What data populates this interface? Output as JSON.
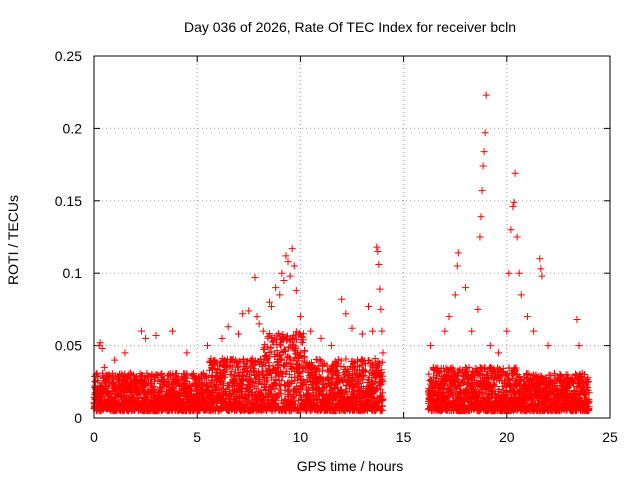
{
  "chart_data": {
    "type": "scatter",
    "title": "Day 036 of 2026, Rate Of TEC Index for receiver bcln",
    "xlabel": "GPS time / hours",
    "ylabel": "ROTI / TECUs",
    "xlim": [
      0,
      25
    ],
    "ylim": [
      0,
      0.25
    ],
    "x_ticks": [
      0,
      5,
      10,
      15,
      20,
      25
    ],
    "x_tick_labels": [
      "0",
      "5",
      "10",
      "15",
      "20",
      "25"
    ],
    "y_ticks": [
      0,
      0.05,
      0.1,
      0.15,
      0.2,
      0.25
    ],
    "y_tick_labels": [
      "0",
      "0.05",
      "0.1",
      "0.15",
      "0.2",
      "0.25"
    ],
    "grid": true,
    "marker": "+",
    "color": "#ff0000",
    "data_gap_hours": [
      14.0,
      16.2
    ],
    "series": [
      {
        "name": "ROTI",
        "points": [
          [
            0.1,
            0.03
          ],
          [
            0.25,
            0.05
          ],
          [
            0.3,
            0.052
          ],
          [
            0.4,
            0.048
          ],
          [
            0.5,
            0.035
          ],
          [
            1.0,
            0.04
          ],
          [
            1.5,
            0.045
          ],
          [
            2.3,
            0.06
          ],
          [
            2.5,
            0.055
          ],
          [
            3.0,
            0.057
          ],
          [
            3.8,
            0.06
          ],
          [
            4.5,
            0.045
          ],
          [
            5.5,
            0.05
          ],
          [
            6.2,
            0.055
          ],
          [
            6.5,
            0.063
          ],
          [
            7.0,
            0.058
          ],
          [
            7.2,
            0.072
          ],
          [
            7.5,
            0.074
          ],
          [
            7.8,
            0.097
          ],
          [
            7.9,
            0.07
          ],
          [
            8.0,
            0.065
          ],
          [
            8.2,
            0.06
          ],
          [
            8.5,
            0.08
          ],
          [
            8.6,
            0.077
          ],
          [
            8.8,
            0.09
          ],
          [
            9.0,
            0.085
          ],
          [
            9.1,
            0.1
          ],
          [
            9.2,
            0.095
          ],
          [
            9.3,
            0.112
          ],
          [
            9.4,
            0.108
          ],
          [
            9.5,
            0.098
          ],
          [
            9.6,
            0.117
          ],
          [
            9.7,
            0.105
          ],
          [
            9.8,
            0.088
          ],
          [
            10.0,
            0.07
          ],
          [
            10.5,
            0.06
          ],
          [
            11.0,
            0.055
          ],
          [
            11.5,
            0.05
          ],
          [
            12.0,
            0.082
          ],
          [
            12.2,
            0.072
          ],
          [
            12.5,
            0.062
          ],
          [
            13.0,
            0.058
          ],
          [
            13.3,
            0.077
          ],
          [
            13.5,
            0.06
          ],
          [
            13.7,
            0.118
          ],
          [
            13.75,
            0.115
          ],
          [
            13.8,
            0.106
          ],
          [
            13.85,
            0.089
          ],
          [
            13.9,
            0.075
          ],
          [
            13.95,
            0.06
          ],
          [
            14.0,
            0.045
          ],
          [
            16.3,
            0.05
          ],
          [
            17.0,
            0.06
          ],
          [
            17.2,
            0.07
          ],
          [
            17.5,
            0.085
          ],
          [
            17.6,
            0.105
          ],
          [
            17.65,
            0.114
          ],
          [
            18.0,
            0.09
          ],
          [
            18.3,
            0.06
          ],
          [
            18.6,
            0.075
          ],
          [
            18.7,
            0.125
          ],
          [
            18.75,
            0.139
          ],
          [
            18.8,
            0.157
          ],
          [
            18.85,
            0.174
          ],
          [
            18.9,
            0.184
          ],
          [
            18.95,
            0.197
          ],
          [
            19.0,
            0.223
          ],
          [
            19.2,
            0.05
          ],
          [
            19.6,
            0.045
          ],
          [
            20.0,
            0.06
          ],
          [
            20.1,
            0.1
          ],
          [
            20.2,
            0.13
          ],
          [
            20.3,
            0.146
          ],
          [
            20.35,
            0.149
          ],
          [
            20.4,
            0.169
          ],
          [
            20.5,
            0.125
          ],
          [
            20.6,
            0.1
          ],
          [
            20.7,
            0.085
          ],
          [
            21.0,
            0.07
          ],
          [
            21.3,
            0.06
          ],
          [
            21.6,
            0.11
          ],
          [
            21.65,
            0.103
          ],
          [
            21.7,
            0.098
          ],
          [
            22.0,
            0.05
          ],
          [
            23.4,
            0.068
          ],
          [
            23.5,
            0.05
          ]
        ]
      }
    ]
  }
}
